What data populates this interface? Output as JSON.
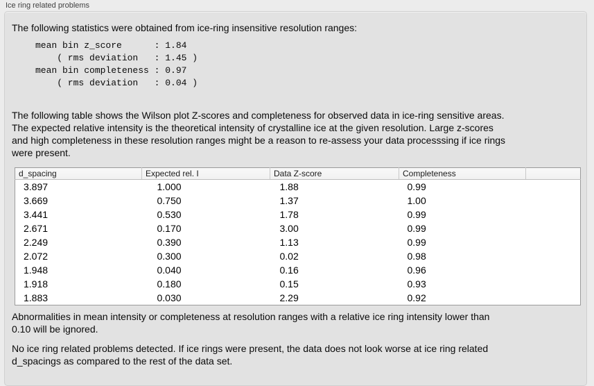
{
  "panel": {
    "title": "Ice ring related problems"
  },
  "stats": {
    "intro": "The following statistics were obtained from ice-ring insensitive resolution ranges:",
    "block": "mean bin z_score      : 1.84\n    ( rms deviation   : 1.45 )\nmean bin completeness : 0.97\n    ( rms deviation   : 0.04 )"
  },
  "table_intro": "The following table shows the Wilson plot Z-scores and completeness for observed data in ice-ring sensitive areas.\nThe expected relative intensity is the theoretical intensity of crystalline ice at the given resolution. Large z-scores\nand high completeness in these resolution ranges might be a reason to re-assess your data processsing if ice rings\nwere present.",
  "table": {
    "headers": [
      "d_spacing",
      "Expected rel. I",
      "Data Z-score",
      "Completeness"
    ],
    "rows": [
      [
        "3.897",
        "1.000",
        "1.88",
        "0.99"
      ],
      [
        "3.669",
        "0.750",
        "1.37",
        "1.00"
      ],
      [
        "3.441",
        "0.530",
        "1.78",
        "0.99"
      ],
      [
        "2.671",
        "0.170",
        "3.00",
        "0.99"
      ],
      [
        "2.249",
        "0.390",
        "1.13",
        "0.99"
      ],
      [
        "2.072",
        "0.300",
        "0.02",
        "0.98"
      ],
      [
        "1.948",
        "0.040",
        "0.16",
        "0.96"
      ],
      [
        "1.918",
        "0.180",
        "0.15",
        "0.93"
      ],
      [
        "1.883",
        "0.030",
        "2.29",
        "0.92"
      ]
    ]
  },
  "notes": {
    "ignore_note": "Abnormalities in mean intensity or completeness at resolution ranges with a relative ice ring intensity lower than\n0.10 will be ignored.",
    "conclusion": "No ice ring related problems detected. If ice rings were present, the data does not look worse at ice ring related\nd_spacings as compared to the rest of the data set."
  }
}
